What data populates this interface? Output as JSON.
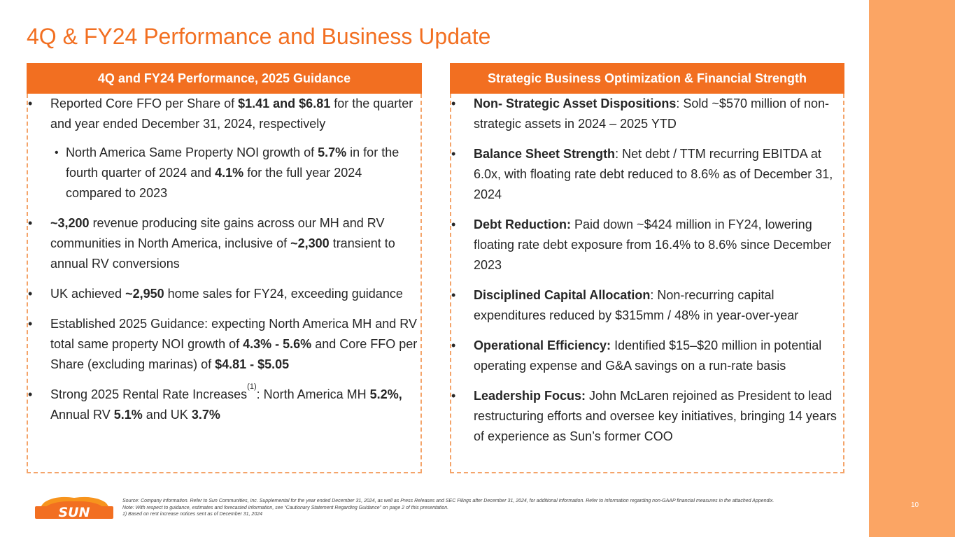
{
  "title": "4Q & FY24 Performance and Business Update",
  "colors": {
    "accent": "#f26f21",
    "band": "#fba564",
    "dash": "#f4a46a"
  },
  "left_panel": {
    "header": "4Q and FY24 Performance, 2025 Guidance",
    "bullets": [
      {
        "parts": [
          "Reported Core FFO per Share of ",
          "$1.41 and $6.81",
          " for the quarter and year ended December 31, 2024, respectively"
        ]
      },
      {
        "sub": true,
        "parts": [
          "North America Same Property NOI growth of ",
          "5.7%",
          " in for the fourth quarter of 2024 and ",
          "4.1%",
          " for the full year 2024 compared to 2023"
        ]
      },
      {
        "parts": [
          "~3,200",
          " revenue producing site gains across our MH and RV communities in North America, inclusive of ",
          "~2,300",
          " transient to annual RV conversions"
        ]
      },
      {
        "parts": [
          "UK achieved ",
          "~2,950",
          " home sales for FY24, exceeding guidance"
        ]
      },
      {
        "parts": [
          "Established 2025 Guidance: expecting North America MH and RV total same property NOI growth of ",
          "4.3% - 5.6%",
          " and Core FFO per Share (excluding marinas) of ",
          "$4.81 - $5.05"
        ]
      },
      {
        "parts": [
          "Strong 2025 Rental Rate Increases",
          "(1)",
          ":  North America MH ",
          "5.2%,",
          " Annual RV ",
          "5.1%",
          " and UK ",
          "3.7%"
        ]
      }
    ]
  },
  "right_panel": {
    "header": "Strategic Business Optimization & Financial Strength",
    "bullets": [
      {
        "bold": "Non- Strategic Asset Dispositions",
        "text": ": Sold ~$570 million of non-strategic assets in 2024 – 2025 YTD"
      },
      {
        "bold": "Balance Sheet Strength",
        "text": ": Net debt / TTM recurring EBITDA at 6.0x, with floating rate debt reduced to 8.6% as of December 31, 2024"
      },
      {
        "bold": "Debt Reduction:",
        "text": " Paid down ~$424 million in FY24, lowering floating rate debt exposure from 16.4% to 8.6% since December 2023"
      },
      {
        "bold": "Disciplined Capital Allocation",
        "text": ": Non-recurring capital expenditures reduced by $315mm / 48% in year-over-year"
      },
      {
        "bold": "Operational Efficiency:",
        "text": " Identified $15–$20 million in potential operating expense and G&A savings on a run-rate basis"
      },
      {
        "bold": "Leadership Focus:",
        "text": " John McLaren rejoined as President to lead restructuring efforts and oversee key initiatives, bringing 14 years of experience as Sun’s former COO"
      }
    ]
  },
  "footer": {
    "logo_text": "SUN",
    "source": "Source: Company information. Refer to Sun Communities, Inc. Supplemental for the year ended December 31, 2024, as well as Press Releases and SEC Filings after December 31, 2024, for additional information. Refer to information regarding non-GAAP financial measures in the attached Appendix.",
    "note": "Note:  With respect to guidance, estimates and forecasted information, see “Cautionary Statement Regarding Guidance” on page 2 of this presentation.",
    "footnote_1": "1)       Based on rent increase notices sent as of December 31, 2024"
  },
  "page_number": "10"
}
